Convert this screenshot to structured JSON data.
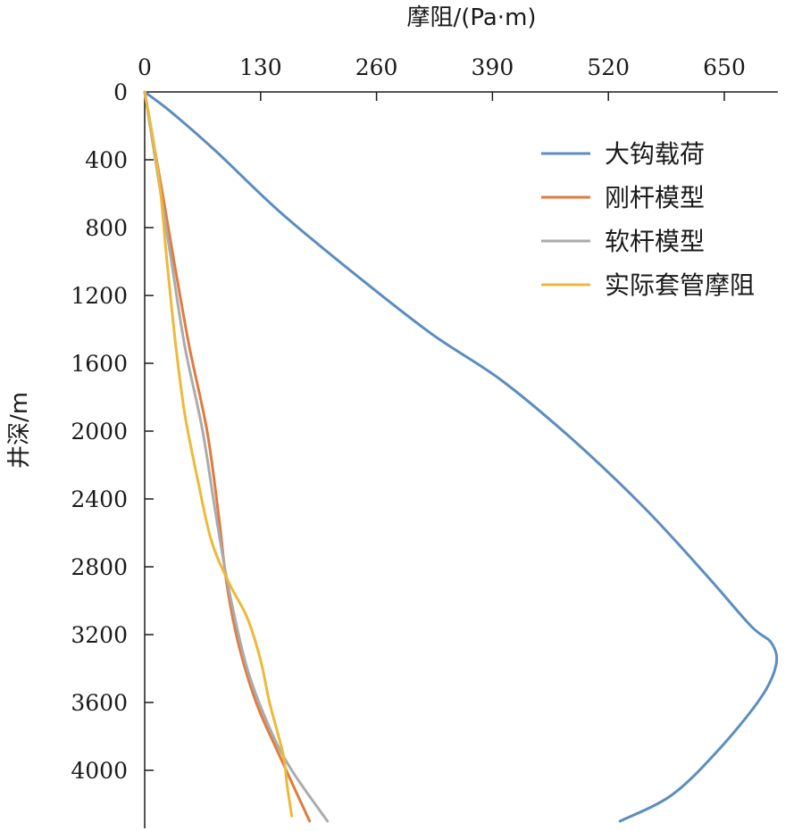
{
  "chart_data": {
    "type": "line",
    "xlabel": "摩阻/(Pa·m)",
    "ylabel": "井深/m",
    "x_axis_position": "top",
    "y_axis_inverted": true,
    "xlim": [
      0,
      710
    ],
    "ylim": [
      0,
      4300
    ],
    "xticks": [
      "0",
      "130",
      "260",
      "390",
      "520",
      "650"
    ],
    "yticks": [
      "0",
      "400",
      "800",
      "1200",
      "1600",
      "2000",
      "2400",
      "2800",
      "3200",
      "3600",
      "4000"
    ],
    "grid": false,
    "legend_position": "top-right",
    "series": [
      {
        "name": "大钩载荷",
        "color": "#5B8DBE",
        "points": [
          [
            0,
            0
          ],
          [
            30,
            120
          ],
          [
            80,
            350
          ],
          [
            150,
            700
          ],
          [
            230,
            1050
          ],
          [
            320,
            1420
          ],
          [
            400,
            1700
          ],
          [
            480,
            2050
          ],
          [
            560,
            2450
          ],
          [
            630,
            2850
          ],
          [
            680,
            3150
          ],
          [
            703,
            3250
          ],
          [
            708,
            3380
          ],
          [
            690,
            3580
          ],
          [
            640,
            3900
          ],
          [
            590,
            4150
          ],
          [
            533,
            4300
          ]
        ]
      },
      {
        "name": "刚杆模型",
        "color": "#E07B3F",
        "points": [
          [
            0,
            0
          ],
          [
            10,
            300
          ],
          [
            20,
            600
          ],
          [
            33,
            1000
          ],
          [
            50,
            1500
          ],
          [
            70,
            2000
          ],
          [
            83,
            2500
          ],
          [
            92,
            2900
          ],
          [
            105,
            3250
          ],
          [
            125,
            3600
          ],
          [
            150,
            3900
          ],
          [
            185,
            4300
          ]
        ]
      },
      {
        "name": "软杆模型",
        "color": "#ABABAB",
        "points": [
          [
            0,
            0
          ],
          [
            9,
            300
          ],
          [
            18,
            600
          ],
          [
            30,
            1000
          ],
          [
            45,
            1500
          ],
          [
            65,
            2000
          ],
          [
            80,
            2500
          ],
          [
            95,
            2950
          ],
          [
            115,
            3400
          ],
          [
            140,
            3750
          ],
          [
            165,
            4000
          ],
          [
            205,
            4300
          ]
        ]
      },
      {
        "name": "实际套管摩阻",
        "color": "#EDB93A",
        "points": [
          [
            0,
            0
          ],
          [
            10,
            300
          ],
          [
            18,
            600
          ],
          [
            25,
            1000
          ],
          [
            35,
            1500
          ],
          [
            45,
            1900
          ],
          [
            60,
            2300
          ],
          [
            75,
            2650
          ],
          [
            95,
            2900
          ],
          [
            115,
            3100
          ],
          [
            130,
            3350
          ],
          [
            140,
            3600
          ],
          [
            155,
            3900
          ],
          [
            160,
            4100
          ],
          [
            165,
            4270
          ]
        ]
      }
    ]
  }
}
